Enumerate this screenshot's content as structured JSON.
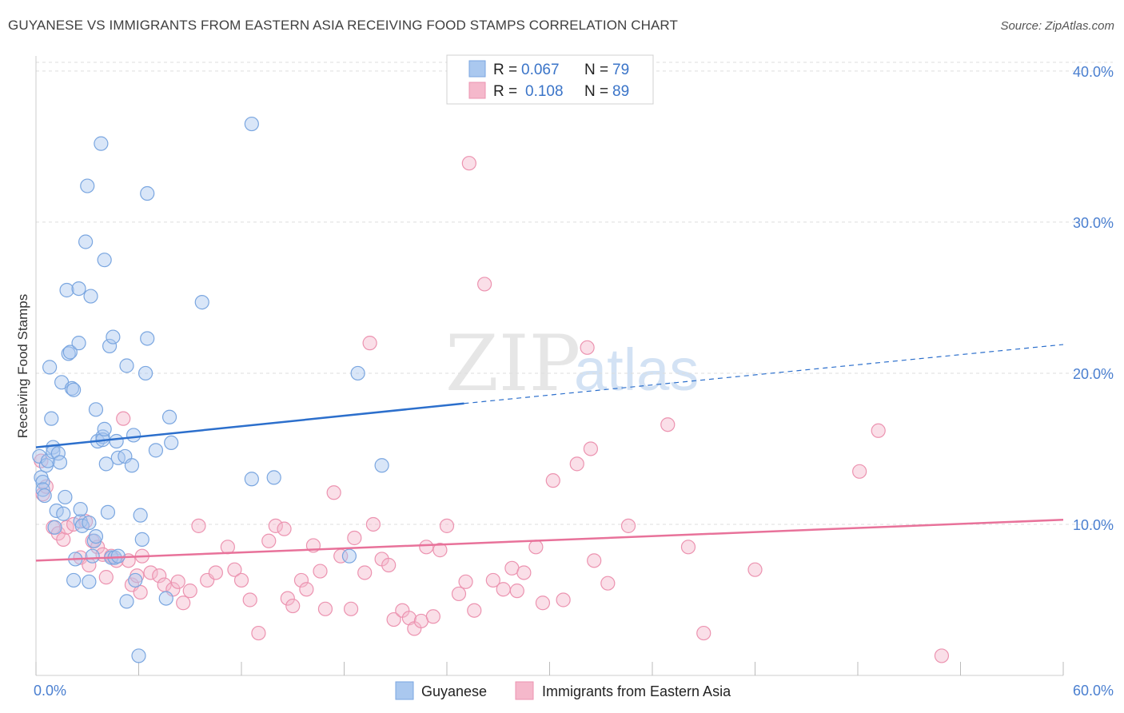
{
  "header": {
    "title": "GUYANESE VS IMMIGRANTS FROM EASTERN ASIA RECEIVING FOOD STAMPS CORRELATION CHART",
    "source": "Source: ZipAtlas.com"
  },
  "watermark": {
    "zip": "ZIP",
    "atlas": "atlas"
  },
  "legend": {
    "rows": [
      {
        "r_label": "R =",
        "r_value": "0.067",
        "n_label": "N =",
        "n_value": "79"
      },
      {
        "r_label": "R =",
        "r_value": "0.108",
        "n_label": "N =",
        "n_value": "89"
      }
    ]
  },
  "colors": {
    "blue_fill": "#aac8ef",
    "blue_stroke": "#7aa6e0",
    "blue_line": "#2c6fcc",
    "pink_fill": "#f5b8cb",
    "pink_stroke": "#ec93b0",
    "pink_line": "#e8729a",
    "grid": "#dddddd",
    "tick_text": "#4a7fd0"
  },
  "chart_data": {
    "type": "scatter",
    "xlabel": "",
    "ylabel": "Receiving Food Stamps",
    "xlim": [
      0,
      60
    ],
    "ylim": [
      0,
      41
    ],
    "x_tick_labels": [
      "0.0%",
      "60.0%"
    ],
    "y_ticks": [
      10,
      20,
      30,
      40
    ],
    "y_tick_labels": [
      "10.0%",
      "20.0%",
      "30.0%",
      "40.0%"
    ],
    "legend_position": "bottom-center",
    "series": [
      {
        "name": "Guyanese",
        "color": "#aac8ef",
        "trend": {
          "x0": 0,
          "y0": 15.1,
          "x1": 25,
          "y1": 18.0,
          "dashed_to_x": 60,
          "dashed_to_y": 21.9
        },
        "points": [
          [
            0.2,
            14.5
          ],
          [
            0.3,
            13.1
          ],
          [
            0.4,
            12.8
          ],
          [
            0.4,
            12.3
          ],
          [
            0.5,
            11.9
          ],
          [
            0.6,
            13.9
          ],
          [
            0.7,
            14.2
          ],
          [
            0.8,
            20.4
          ],
          [
            0.9,
            17.0
          ],
          [
            1.0,
            15.1
          ],
          [
            1.0,
            14.8
          ],
          [
            1.1,
            9.8
          ],
          [
            1.2,
            10.9
          ],
          [
            1.3,
            14.7
          ],
          [
            1.4,
            14.1
          ],
          [
            1.5,
            19.4
          ],
          [
            1.6,
            10.7
          ],
          [
            1.7,
            11.8
          ],
          [
            1.8,
            25.5
          ],
          [
            1.9,
            21.3
          ],
          [
            2.0,
            21.4
          ],
          [
            2.1,
            19.0
          ],
          [
            2.2,
            18.9
          ],
          [
            2.2,
            6.3
          ],
          [
            2.3,
            7.7
          ],
          [
            2.5,
            25.6
          ],
          [
            2.5,
            22.0
          ],
          [
            2.6,
            10.2
          ],
          [
            2.6,
            11.0
          ],
          [
            2.7,
            9.9
          ],
          [
            2.9,
            28.7
          ],
          [
            3.0,
            32.4
          ],
          [
            3.1,
            10.1
          ],
          [
            3.1,
            6.2
          ],
          [
            3.2,
            25.1
          ],
          [
            3.3,
            7.9
          ],
          [
            3.4,
            8.9
          ],
          [
            3.5,
            9.2
          ],
          [
            3.5,
            17.6
          ],
          [
            3.6,
            15.5
          ],
          [
            3.8,
            35.2
          ],
          [
            3.9,
            15.8
          ],
          [
            3.9,
            15.6
          ],
          [
            4.0,
            27.5
          ],
          [
            4.0,
            16.3
          ],
          [
            4.1,
            14.0
          ],
          [
            4.2,
            10.8
          ],
          [
            4.3,
            21.8
          ],
          [
            4.4,
            7.8
          ],
          [
            4.5,
            22.4
          ],
          [
            4.6,
            7.8
          ],
          [
            4.7,
            15.5
          ],
          [
            4.8,
            7.9
          ],
          [
            4.8,
            14.4
          ],
          [
            5.2,
            14.5
          ],
          [
            5.3,
            20.5
          ],
          [
            5.3,
            4.9
          ],
          [
            5.6,
            13.9
          ],
          [
            5.7,
            15.9
          ],
          [
            5.8,
            6.3
          ],
          [
            6.0,
            1.3
          ],
          [
            6.1,
            10.6
          ],
          [
            6.2,
            9.0
          ],
          [
            6.4,
            20.0
          ],
          [
            6.5,
            22.3
          ],
          [
            6.5,
            31.9
          ],
          [
            7.0,
            14.9
          ],
          [
            7.6,
            5.1
          ],
          [
            7.8,
            17.1
          ],
          [
            7.9,
            15.4
          ],
          [
            9.7,
            24.7
          ],
          [
            12.6,
            13.0
          ],
          [
            12.6,
            36.5
          ],
          [
            13.9,
            13.1
          ],
          [
            18.3,
            7.9
          ],
          [
            18.8,
            20.0
          ],
          [
            20.2,
            13.9
          ]
        ]
      },
      {
        "name": "Immigrants from Eastern Asia",
        "color": "#f5b8cb",
        "trend": {
          "x0": 0,
          "y0": 7.6,
          "x1": 60,
          "y1": 10.3
        },
        "points": [
          [
            0.3,
            14.2
          ],
          [
            0.4,
            12.0
          ],
          [
            0.6,
            12.5
          ],
          [
            1.0,
            9.8
          ],
          [
            1.3,
            9.4
          ],
          [
            1.6,
            9.0
          ],
          [
            1.8,
            9.8
          ],
          [
            2.2,
            10.0
          ],
          [
            2.6,
            7.8
          ],
          [
            2.9,
            10.2
          ],
          [
            3.1,
            7.3
          ],
          [
            3.3,
            8.9
          ],
          [
            3.6,
            8.5
          ],
          [
            3.9,
            8.0
          ],
          [
            4.1,
            6.5
          ],
          [
            4.4,
            7.9
          ],
          [
            4.7,
            7.6
          ],
          [
            5.1,
            17.0
          ],
          [
            5.4,
            7.6
          ],
          [
            5.6,
            6.0
          ],
          [
            5.9,
            6.6
          ],
          [
            6.1,
            5.5
          ],
          [
            6.2,
            7.9
          ],
          [
            6.7,
            6.8
          ],
          [
            7.2,
            6.6
          ],
          [
            7.5,
            6.0
          ],
          [
            8.0,
            5.7
          ],
          [
            8.3,
            6.2
          ],
          [
            8.6,
            4.8
          ],
          [
            9.0,
            5.6
          ],
          [
            9.5,
            9.9
          ],
          [
            10.0,
            6.3
          ],
          [
            10.5,
            6.8
          ],
          [
            11.2,
            8.5
          ],
          [
            11.6,
            7.0
          ],
          [
            12.0,
            6.3
          ],
          [
            12.5,
            5.0
          ],
          [
            13.0,
            2.8
          ],
          [
            13.6,
            8.9
          ],
          [
            14.0,
            9.9
          ],
          [
            14.5,
            9.7
          ],
          [
            14.7,
            5.1
          ],
          [
            15.0,
            4.6
          ],
          [
            15.5,
            6.3
          ],
          [
            15.8,
            5.7
          ],
          [
            16.2,
            8.6
          ],
          [
            16.6,
            6.9
          ],
          [
            16.9,
            4.4
          ],
          [
            17.4,
            12.1
          ],
          [
            17.8,
            7.9
          ],
          [
            18.4,
            4.4
          ],
          [
            18.6,
            9.1
          ],
          [
            19.2,
            6.8
          ],
          [
            19.5,
            22.0
          ],
          [
            19.7,
            10.0
          ],
          [
            20.2,
            7.7
          ],
          [
            20.6,
            7.3
          ],
          [
            20.9,
            3.7
          ],
          [
            21.4,
            4.3
          ],
          [
            21.8,
            3.8
          ],
          [
            22.1,
            3.1
          ],
          [
            22.5,
            3.6
          ],
          [
            22.8,
            8.5
          ],
          [
            23.2,
            3.9
          ],
          [
            23.6,
            8.3
          ],
          [
            24.0,
            9.9
          ],
          [
            24.7,
            5.4
          ],
          [
            25.1,
            6.2
          ],
          [
            25.3,
            33.9
          ],
          [
            25.6,
            4.3
          ],
          [
            26.2,
            25.9
          ],
          [
            26.7,
            6.3
          ],
          [
            27.3,
            5.7
          ],
          [
            27.8,
            7.1
          ],
          [
            28.1,
            5.6
          ],
          [
            28.5,
            6.8
          ],
          [
            29.2,
            8.5
          ],
          [
            29.6,
            4.8
          ],
          [
            30.2,
            12.9
          ],
          [
            30.8,
            5.0
          ],
          [
            31.6,
            14.0
          ],
          [
            32.2,
            21.7
          ],
          [
            32.4,
            15.0
          ],
          [
            32.6,
            7.6
          ],
          [
            33.4,
            6.1
          ],
          [
            34.6,
            9.9
          ],
          [
            36.9,
            16.6
          ],
          [
            38.1,
            8.5
          ],
          [
            39.0,
            2.8
          ],
          [
            42.0,
            7.0
          ],
          [
            48.1,
            13.5
          ],
          [
            49.2,
            16.2
          ],
          [
            52.9,
            1.3
          ]
        ]
      }
    ]
  },
  "bottom_legend": {
    "items": [
      {
        "label": "Guyanese"
      },
      {
        "label": "Immigrants from Eastern Asia"
      }
    ]
  }
}
